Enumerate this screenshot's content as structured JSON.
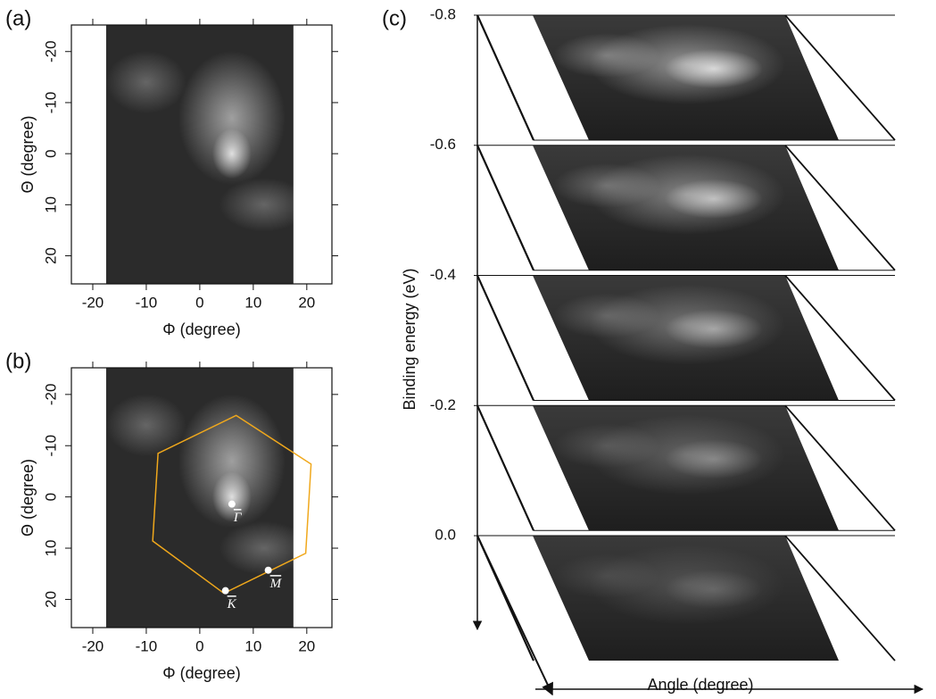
{
  "chart_data": [
    {
      "type": "heatmap",
      "panel_label": "(a)",
      "xlabel": "Φ (degree)",
      "ylabel": "Θ (degree)",
      "xlim": [
        -24,
        24.7
      ],
      "xticks": [
        -20,
        -10,
        0,
        10,
        20
      ],
      "ylim": [
        25.5,
        -25.2
      ],
      "yticks": [
        -20,
        -10,
        0,
        10,
        20
      ],
      "image_xlim": [
        -17.5,
        17.5
      ]
    },
    {
      "type": "heatmap",
      "panel_label": "(b)",
      "xlabel": "Φ (degree)",
      "ylabel": "Θ (degree)",
      "xlim": [
        -24,
        24.7
      ],
      "xticks": [
        -20,
        -10,
        0,
        10,
        20
      ],
      "ylim": [
        25.5,
        -25.2
      ],
      "yticks": [
        -20,
        -10,
        0,
        10,
        20
      ],
      "image_xlim": [
        -17.5,
        17.5
      ],
      "zone": {
        "color": "#f0a81c",
        "phi": [
          6.8,
          20.8,
          19.8,
          4.5,
          -8.8,
          -7.8
        ],
        "theta": [
          -15.9,
          -6.4,
          11.0,
          18.8,
          8.6,
          -8.5
        ]
      },
      "points": [
        {
          "label": "Γ",
          "phi": 6,
          "theta": 1.4
        },
        {
          "label": "K",
          "phi": 4.8,
          "theta": 18.3
        },
        {
          "label": "M",
          "phi": 12.8,
          "theta": 14.3
        }
      ]
    },
    {
      "type": "slabs",
      "panel_label": "(c)",
      "xlabel": "Angle (degree)",
      "ylabel": "Binding energy (eV)",
      "ylim": [
        0.144,
        -0.8
      ],
      "yticks": [
        -0.8,
        -0.6,
        -0.4,
        -0.2,
        {
          "value": 0,
          "label": "0.0"
        }
      ]
    }
  ]
}
